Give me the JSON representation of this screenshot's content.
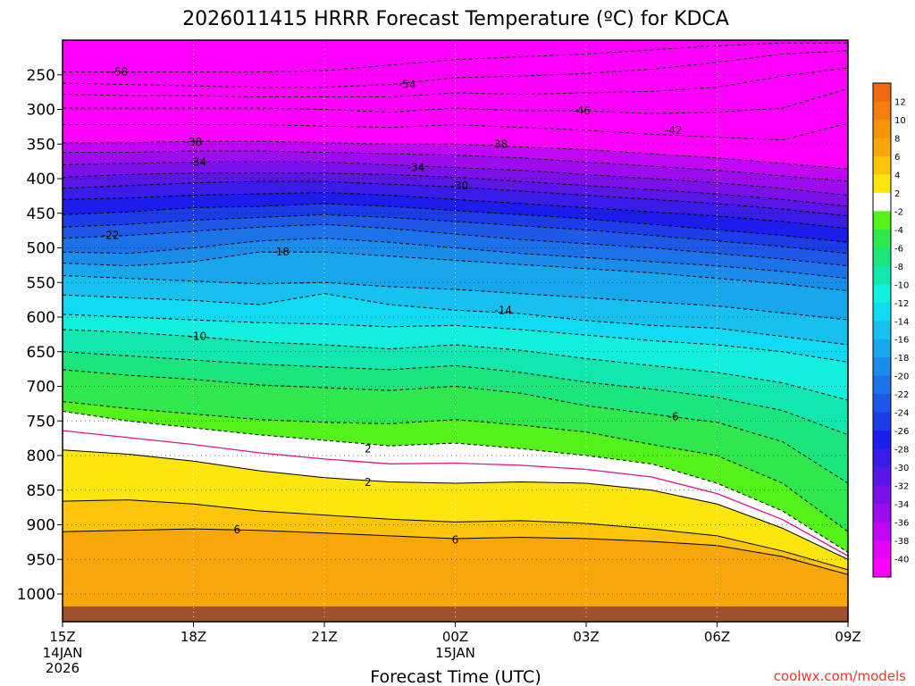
{
  "chart_data": {
    "type": "heatmap",
    "title": "2026011415 HRRR Forecast Temperature (ºC) for KDCA",
    "xlabel": "Forecast Time (UTC)",
    "ylabel": "",
    "x_ticks": [
      "15Z",
      "18Z",
      "21Z",
      "00Z",
      "03Z",
      "06Z",
      "09Z"
    ],
    "x_tick_hours": [
      15,
      18,
      21,
      24,
      27,
      30,
      33
    ],
    "x_tick_sub": [
      {
        "hour": 15,
        "lines": [
          "14JAN",
          "2026"
        ]
      },
      {
        "hour": 24,
        "lines": [
          "15JAN"
        ]
      }
    ],
    "y_ticks": [
      250,
      300,
      350,
      400,
      450,
      500,
      550,
      600,
      650,
      700,
      750,
      800,
      850,
      900,
      950,
      1000
    ],
    "ylim": [
      1040,
      200
    ],
    "xlim": [
      15,
      33
    ],
    "ground_pressure": 1018,
    "colorbar": {
      "labels": [
        "12",
        "10",
        "8",
        "6",
        "4",
        "2",
        "-2",
        "-4",
        "-6",
        "-8",
        "-10",
        "-12",
        "-14",
        "-16",
        "-18",
        "-20",
        "-22",
        "-24",
        "-26",
        "-28",
        "-30",
        "-32",
        "-34",
        "-36",
        "-38",
        "-40"
      ],
      "colors": [
        "#ee6a10",
        "#f47d10",
        "#f7930b",
        "#f9a60a",
        "#fcc50c",
        "#fde60e",
        "#ffffff",
        "#52f21a",
        "#2ee84d",
        "#1ae67d",
        "#12e8ae",
        "#12f0dd",
        "#10dbf2",
        "#18c0f0",
        "#18a6ec",
        "#1a8cea",
        "#1c72e8",
        "#1d58e6",
        "#1c3ce8",
        "#1c1cec",
        "#3a1ce8",
        "#5a16e6",
        "#7c10ea",
        "#9c0cee",
        "#c006f4",
        "#e600f8",
        "#ff00ff"
      ]
    },
    "isotherm_hours": [
      15,
      16.5,
      18,
      19.5,
      21,
      22.5,
      24,
      25.5,
      27,
      28.5,
      30,
      31.5,
      33
    ],
    "isotherms": [
      {
        "temp": 6,
        "pressure": [
          910,
          908,
          906,
          908,
          912,
          916,
          920,
          918,
          920,
          924,
          930,
          946,
          972
        ]
      },
      {
        "temp": 4,
        "pressure": [
          866,
          864,
          870,
          880,
          886,
          892,
          896,
          894,
          898,
          906,
          916,
          938,
          965
        ]
      },
      {
        "temp": 2,
        "pressure": [
          792,
          798,
          808,
          822,
          832,
          838,
          840,
          838,
          840,
          850,
          870,
          905,
          950
        ]
      },
      {
        "temp": -2,
        "pressure": [
          736,
          750,
          760,
          770,
          778,
          786,
          782,
          790,
          800,
          812,
          840,
          880,
          940
        ]
      },
      {
        "temp": -4,
        "pressure": [
          722,
          732,
          740,
          748,
          752,
          754,
          748,
          756,
          766,
          784,
          800,
          840,
          910
        ]
      },
      {
        "temp": -6,
        "pressure": [
          676,
          684,
          690,
          698,
          702,
          706,
          700,
          710,
          728,
          740,
          752,
          780,
          840
        ]
      },
      {
        "temp": -8,
        "pressure": [
          650,
          656,
          662,
          668,
          672,
          676,
          670,
          680,
          694,
          704,
          716,
          735,
          770
        ]
      },
      {
        "temp": -10,
        "pressure": [
          618,
          622,
          628,
          636,
          640,
          646,
          640,
          648,
          660,
          670,
          680,
          695,
          720
        ]
      },
      {
        "temp": -12,
        "pressure": [
          596,
          600,
          604,
          608,
          610,
          614,
          612,
          618,
          626,
          634,
          640,
          650,
          665
        ]
      },
      {
        "temp": -14,
        "pressure": [
          568,
          572,
          576,
          582,
          566,
          582,
          590,
          595,
          605,
          612,
          616,
          628,
          640
        ]
      },
      {
        "temp": -16,
        "pressure": [
          540,
          544,
          548,
          552,
          550,
          556,
          560,
          566,
          572,
          578,
          584,
          594,
          604
        ]
      },
      {
        "temp": -18,
        "pressure": [
          522,
          526,
          520,
          506,
          506,
          512,
          518,
          524,
          530,
          536,
          544,
          552,
          562
        ]
      },
      {
        "temp": -20,
        "pressure": [
          506,
          508,
          500,
          490,
          486,
          492,
          500,
          508,
          514,
          520,
          526,
          534,
          544
        ]
      },
      {
        "temp": -22,
        "pressure": [
          486,
          482,
          476,
          470,
          466,
          472,
          480,
          488,
          494,
          500,
          508,
          516,
          526
        ]
      },
      {
        "temp": -24,
        "pressure": [
          470,
          466,
          460,
          456,
          452,
          456,
          462,
          468,
          474,
          482,
          490,
          498,
          508
        ]
      },
      {
        "temp": -26,
        "pressure": [
          452,
          448,
          442,
          440,
          436,
          440,
          446,
          452,
          458,
          466,
          474,
          482,
          492
        ]
      },
      {
        "temp": -28,
        "pressure": [
          430,
          428,
          424,
          422,
          420,
          424,
          430,
          436,
          442,
          448,
          454,
          462,
          472
        ]
      },
      {
        "temp": -30,
        "pressure": [
          414,
          410,
          406,
          404,
          404,
          408,
          412,
          418,
          424,
          430,
          436,
          444,
          454
        ]
      },
      {
        "temp": -32,
        "pressure": [
          398,
          394,
          392,
          392,
          392,
          394,
          398,
          404,
          410,
          416,
          422,
          430,
          440
        ]
      },
      {
        "temp": -34,
        "pressure": [
          380,
          378,
          376,
          376,
          376,
          380,
          384,
          388,
          394,
          400,
          406,
          414,
          424
        ]
      },
      {
        "temp": -36,
        "pressure": [
          362,
          362,
          360,
          360,
          362,
          364,
          366,
          370,
          376,
          382,
          388,
          396,
          404
        ]
      },
      {
        "temp": -38,
        "pressure": [
          348,
          348,
          346,
          346,
          348,
          350,
          350,
          354,
          358,
          364,
          370,
          378,
          386
        ]
      },
      {
        "temp": -42,
        "pressure": [
          322,
          322,
          322,
          322,
          324,
          326,
          322,
          326,
          330,
          336,
          340,
          344,
          320
        ]
      },
      {
        "temp": -46,
        "pressure": [
          298,
          298,
          298,
          298,
          300,
          304,
          298,
          302,
          302,
          306,
          304,
          298,
          270
        ]
      },
      {
        "temp": -50,
        "pressure": [
          278,
          280,
          280,
          282,
          282,
          282,
          276,
          278,
          276,
          274,
          268,
          252,
          240
        ]
      },
      {
        "temp": -54,
        "pressure": [
          262,
          264,
          266,
          268,
          268,
          264,
          254,
          252,
          248,
          242,
          232,
          220,
          215
        ]
      },
      {
        "temp": -58,
        "pressure": [
          246,
          246,
          246,
          246,
          244,
          236,
          228,
          224,
          220,
          214,
          208,
          204,
          204
        ]
      }
    ],
    "contour_labels": [
      {
        "text": "-58",
        "hour": 16.3,
        "pressure": 246
      },
      {
        "text": "-54",
        "hour": 22.9,
        "pressure": 264
      },
      {
        "text": "-46",
        "hour": 26.9,
        "pressure": 302
      },
      {
        "text": "-42",
        "hour": 29.0,
        "pressure": 330
      },
      {
        "text": "-38",
        "hour": 18.0,
        "pressure": 347
      },
      {
        "text": "-38",
        "hour": 25.0,
        "pressure": 350
      },
      {
        "text": "-34",
        "hour": 18.1,
        "pressure": 376
      },
      {
        "text": "-34",
        "hour": 23.1,
        "pressure": 384
      },
      {
        "text": "-30",
        "hour": 24.1,
        "pressure": 410
      },
      {
        "text": "-22",
        "hour": 16.1,
        "pressure": 482
      },
      {
        "text": "-18",
        "hour": 20.0,
        "pressure": 506
      },
      {
        "text": "-14",
        "hour": 25.1,
        "pressure": 590
      },
      {
        "text": "-10",
        "hour": 18.1,
        "pressure": 628
      },
      {
        "text": "-6",
        "hour": 29.0,
        "pressure": 744
      },
      {
        "text": "2",
        "hour": 22.0,
        "pressure": 790
      },
      {
        "text": "2",
        "hour": 22.0,
        "pressure": 839
      },
      {
        "text": "6",
        "hour": 19.0,
        "pressure": 907
      },
      {
        "text": "6",
        "hour": 24.0,
        "pressure": 922
      }
    ]
  },
  "credit": "coolwx.com/models"
}
